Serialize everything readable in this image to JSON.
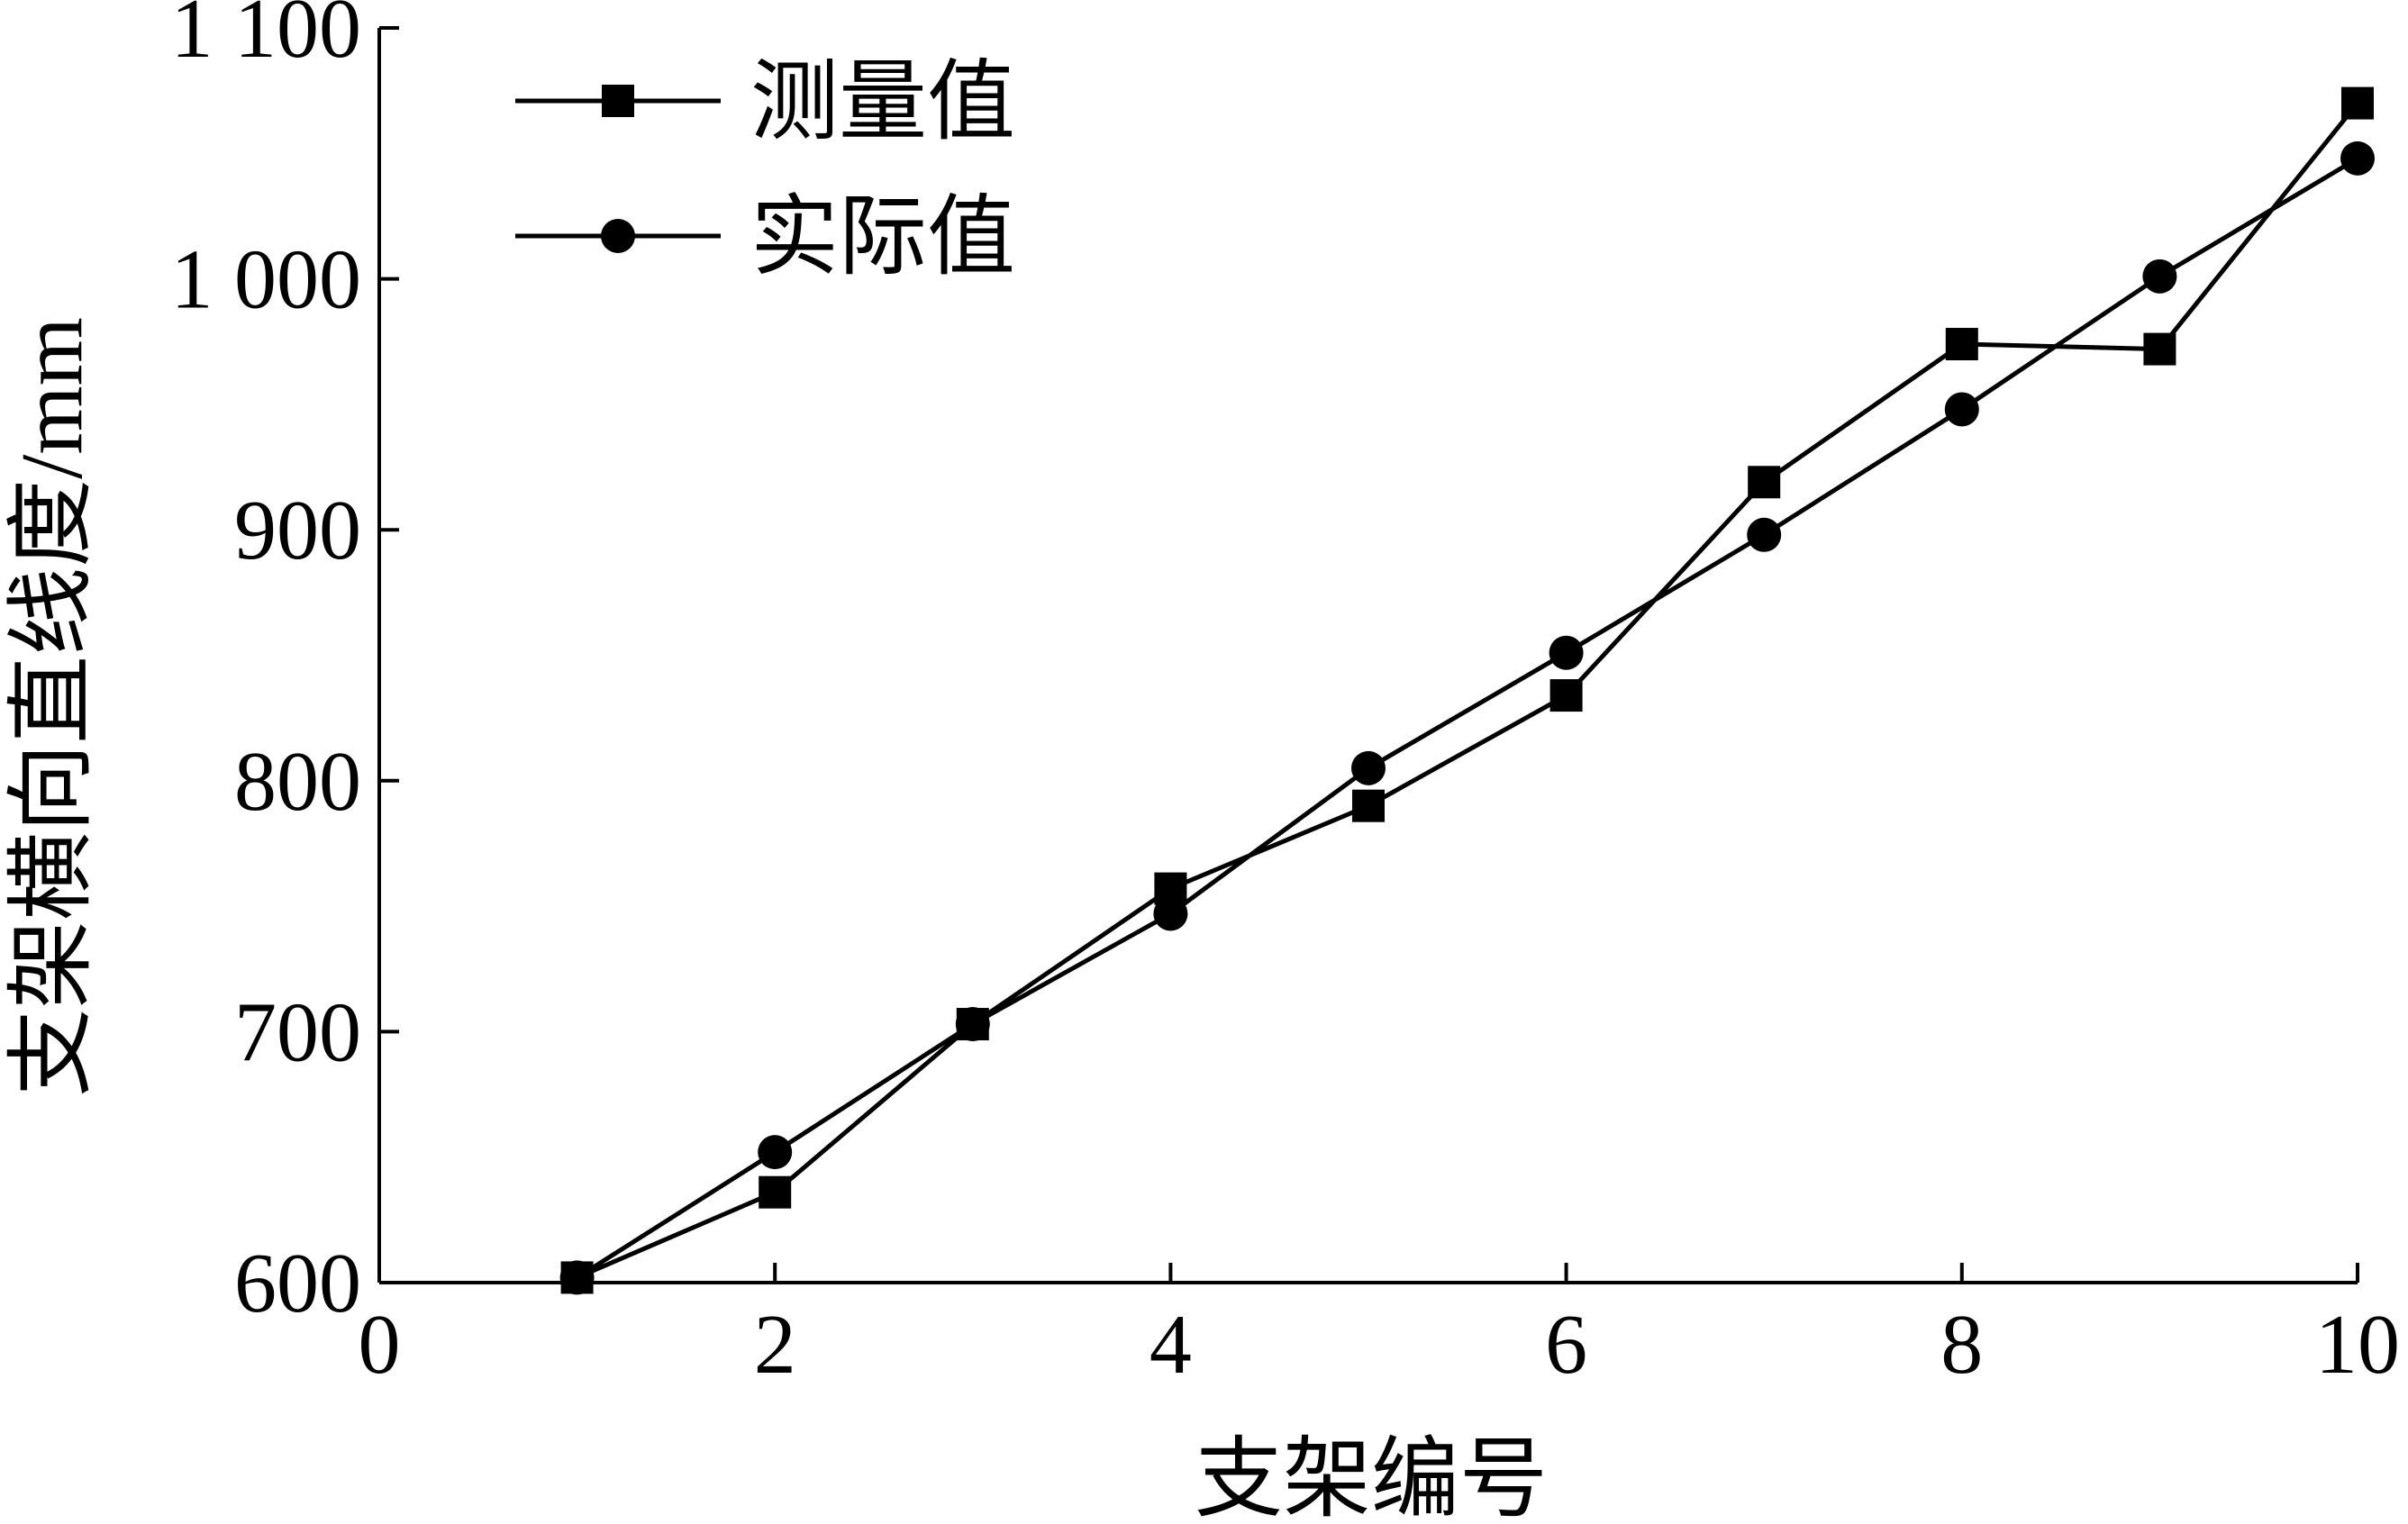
{
  "chart_data": {
    "type": "line",
    "x_label": "支架编号",
    "y_label": "支架横向直线度/mm",
    "x": [
      1,
      2,
      3,
      4,
      5,
      6,
      7,
      8,
      9,
      10
    ],
    "series": [
      {
        "name": "测量值",
        "color": "#000000",
        "marker": "square",
        "values": [
          602,
          636,
          703,
          757,
          790,
          834,
          919,
          974,
          972,
          1070
        ]
      },
      {
        "name": "实际值",
        "color": "#000000",
        "marker": "circle",
        "values": [
          602,
          652,
          703,
          747,
          805,
          851,
          898,
          948,
          1001,
          1048
        ]
      }
    ],
    "xlim": [
      0,
      10
    ],
    "xticks": [
      0,
      2,
      4,
      6,
      8,
      10
    ],
    "ylim": [
      600,
      1100
    ],
    "yticks": [
      600,
      700,
      800,
      900,
      {
        "value": 1000,
        "label": "1 000"
      },
      {
        "value": 1100,
        "label": "1 100"
      }
    ],
    "legend": "upper-left",
    "grid": false
  }
}
